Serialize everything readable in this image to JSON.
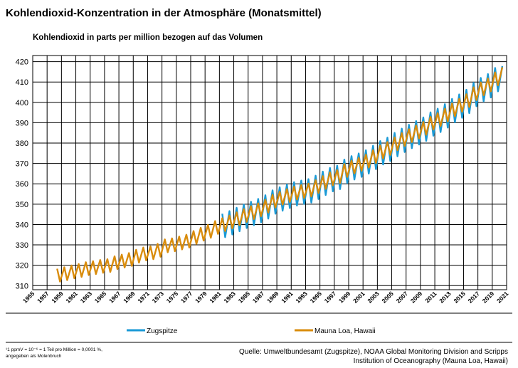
{
  "chart_data": {
    "type": "line",
    "title": "Kohlendioxid-Konzentration in der Atmosphäre (Monatsmittel)",
    "subtitle": "Kohlendioxid in parts per million bezogen auf das Volumen",
    "footnote": [
      "¹1 ppmV = 10⁻⁶ = 1 Teil pro Million = 0,0001 %,",
      "angegeben als Molenbruch"
    ],
    "source": [
      "Quelle: Umweltbundesamt (Zugspitze), NOAA Global Monitoring Division and Scripps",
      "Institution of Oceanography  (Mauna Loa, Hawaii)"
    ],
    "grid": true,
    "xlim": [
      1955,
      2021
    ],
    "xticks": [
      1955,
      1957,
      1959,
      1961,
      1963,
      1965,
      1967,
      1969,
      1971,
      1973,
      1975,
      1977,
      1979,
      1981,
      1983,
      1985,
      1987,
      1989,
      1991,
      1993,
      1995,
      1997,
      1999,
      2001,
      2003,
      2005,
      2007,
      2009,
      2011,
      2013,
      2015,
      2017,
      2019,
      2021
    ],
    "ylim": [
      308,
      423
    ],
    "yticks": [
      310,
      320,
      330,
      340,
      350,
      360,
      370,
      380,
      390,
      400,
      410,
      420
    ],
    "x": [
      1958.4,
      1958.8,
      1959.4,
      1959.8,
      1960.4,
      1960.8,
      1961.4,
      1961.8,
      1962.4,
      1962.8,
      1963.4,
      1963.8,
      1964.4,
      1964.8,
      1965.4,
      1965.8,
      1966.4,
      1966.8,
      1967.4,
      1967.8,
      1968.4,
      1968.8,
      1969.4,
      1969.8,
      1970.4,
      1970.8,
      1971.4,
      1971.8,
      1972.4,
      1972.8,
      1973.4,
      1973.8,
      1974.4,
      1974.8,
      1975.4,
      1975.8,
      1976.4,
      1976.8,
      1977.4,
      1977.8,
      1978.4,
      1978.8,
      1979.4,
      1979.8,
      1980.4,
      1980.8,
      1981.4,
      1981.8,
      1982.4,
      1982.8,
      1983.4,
      1983.8,
      1984.4,
      1984.8,
      1985.4,
      1985.8,
      1986.4,
      1986.8,
      1987.4,
      1987.8,
      1988.4,
      1988.8,
      1989.4,
      1989.8,
      1990.4,
      1990.8,
      1991.4,
      1991.8,
      1992.4,
      1992.8,
      1993.4,
      1993.8,
      1994.4,
      1994.8,
      1995.4,
      1995.8,
      1996.4,
      1996.8,
      1997.4,
      1997.8,
      1998.4,
      1998.8,
      1999.4,
      1999.8,
      2000.4,
      2000.8,
      2001.4,
      2001.8,
      2002.4,
      2002.8,
      2003.4,
      2003.8,
      2004.4,
      2004.8,
      2005.4,
      2005.8,
      2006.4,
      2006.8,
      2007.4,
      2007.8,
      2008.4,
      2008.8,
      2009.4,
      2009.8,
      2010.4,
      2010.8,
      2011.4,
      2011.8,
      2012.4,
      2012.8,
      2013.4,
      2013.8,
      2014.4,
      2014.8,
      2015.4,
      2015.8,
      2016.4,
      2016.8,
      2017.4,
      2017.8,
      2018.4,
      2018.8,
      2019.4,
      2019.8,
      2020.4
    ],
    "series": [
      {
        "name": "Zugspitze",
        "color": "#1b9ad6",
        "values": [
          null,
          null,
          null,
          null,
          null,
          null,
          null,
          null,
          null,
          null,
          null,
          null,
          null,
          null,
          null,
          null,
          null,
          null,
          null,
          null,
          null,
          null,
          null,
          null,
          null,
          null,
          null,
          null,
          null,
          null,
          null,
          null,
          null,
          null,
          null,
          null,
          null,
          null,
          null,
          null,
          null,
          null,
          null,
          null,
          null,
          null,
          345.3,
          333.8,
          346.6,
          335.1,
          348.2,
          336.7,
          349.8,
          338.3,
          351.2,
          339.7,
          352.6,
          341.1,
          354.4,
          342.9,
          356.8,
          345.3,
          358.3,
          346.8,
          359.6,
          348.1,
          360.8,
          349.3,
          361.6,
          350.1,
          362.3,
          350.8,
          364.0,
          352.5,
          366.0,
          354.5,
          367.8,
          356.3,
          368.9,
          357.4,
          371.9,
          360.4,
          373.6,
          362.1,
          374.9,
          363.4,
          376.5,
          365.0,
          378.7,
          367.2,
          381.0,
          369.5,
          382.7,
          371.2,
          385.0,
          373.5,
          387.1,
          375.6,
          389.0,
          377.5,
          390.8,
          379.3,
          392.6,
          381.1,
          395.1,
          383.6,
          396.9,
          385.4,
          399.1,
          387.6,
          401.7,
          390.2,
          403.9,
          392.4,
          406.2,
          394.7,
          409.6,
          398.1,
          412.0,
          400.5,
          413.9,
          402.4,
          416.9,
          405.4,
          417.8
        ]
      },
      {
        "name": "Mauna Loa, Hawaii",
        "color": "#d98c0c",
        "values": [
          318.3,
          312.0,
          319.0,
          312.7,
          319.9,
          313.6,
          320.6,
          314.3,
          321.5,
          315.2,
          322.0,
          315.7,
          322.6,
          316.3,
          323.0,
          316.7,
          324.4,
          318.1,
          325.2,
          318.9,
          326.0,
          319.7,
          327.6,
          321.3,
          328.7,
          322.4,
          329.3,
          323.0,
          330.5,
          324.2,
          332.7,
          326.4,
          333.2,
          326.9,
          334.1,
          327.8,
          335.0,
          328.7,
          336.8,
          330.5,
          338.4,
          332.1,
          339.8,
          333.5,
          341.7,
          335.4,
          343.1,
          336.8,
          344.4,
          338.1,
          346.0,
          339.7,
          347.6,
          341.3,
          349.0,
          342.7,
          350.4,
          344.1,
          352.2,
          345.9,
          354.6,
          348.3,
          356.1,
          349.8,
          357.4,
          351.1,
          358.6,
          352.3,
          359.4,
          353.1,
          360.1,
          353.8,
          361.8,
          355.5,
          363.8,
          357.5,
          365.6,
          359.3,
          366.7,
          360.4,
          369.7,
          363.4,
          371.4,
          365.1,
          372.7,
          366.4,
          374.3,
          368.0,
          376.5,
          370.2,
          378.8,
          372.5,
          380.5,
          374.2,
          382.8,
          376.5,
          384.9,
          378.6,
          386.8,
          380.5,
          388.6,
          382.3,
          390.4,
          384.1,
          392.9,
          386.6,
          394.7,
          388.4,
          396.9,
          390.6,
          399.5,
          393.2,
          401.7,
          395.4,
          404.0,
          397.7,
          407.4,
          401.1,
          409.8,
          403.5,
          411.7,
          405.4,
          414.7,
          408.4,
          417.2
        ]
      }
    ]
  }
}
